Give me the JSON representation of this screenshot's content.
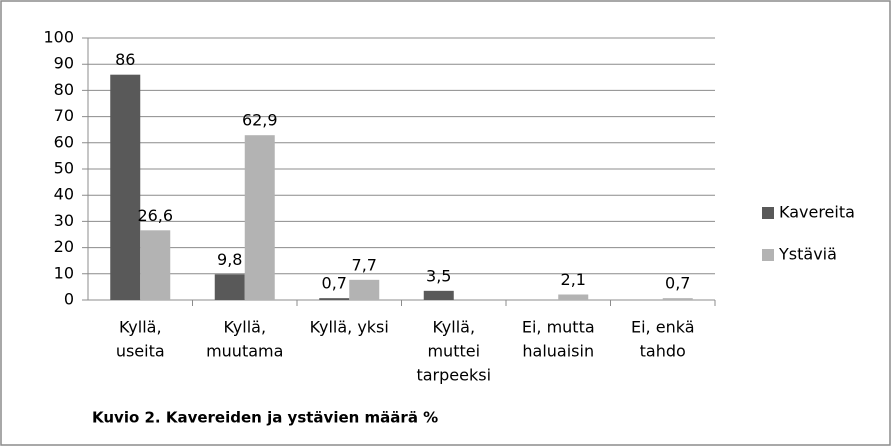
{
  "chart_data": {
    "type": "bar",
    "title": "Kuvio 2. Kavereiden ja ystävien määrä %",
    "categories": [
      [
        "Kyllä,",
        "useita"
      ],
      [
        "Kyllä,",
        "muutama"
      ],
      [
        "Kyllä, yksi"
      ],
      [
        "Kyllä,",
        "muttei",
        "tarpeeksi"
      ],
      [
        "Ei, mutta",
        "haluaisin"
      ],
      [
        "Ei, enkä",
        "tahdo"
      ]
    ],
    "series": [
      {
        "name": "Kavereita",
        "color": "#595959",
        "values": [
          86,
          9.8,
          0.7,
          3.5,
          null,
          null
        ],
        "value_labels": [
          "86",
          "9,8",
          "0,7",
          "3,5",
          null,
          null
        ]
      },
      {
        "name": "Ystäviä",
        "color": "#b3b3b3",
        "values": [
          26.6,
          62.9,
          7.7,
          null,
          2.1,
          0.7
        ],
        "value_labels": [
          "26,6",
          "62,9",
          "7,7",
          null,
          "2,1",
          "0,7"
        ]
      }
    ],
    "ylim": [
      0,
      100
    ],
    "yticks": [
      0,
      10,
      20,
      30,
      40,
      50,
      60,
      70,
      80,
      90,
      100
    ],
    "grid": true,
    "legend": "right"
  }
}
